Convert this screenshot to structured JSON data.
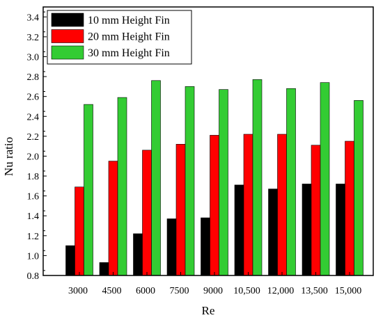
{
  "chart_data": {
    "type": "bar",
    "xlabel": "Re",
    "ylabel": "Nu ratio",
    "categories": [
      "3000",
      "4500",
      "6000",
      "7500",
      "9000",
      "10,500",
      "12,000",
      "13,500",
      "15,000"
    ],
    "ylim": [
      0.8,
      3.5
    ],
    "yticks": [
      "0.8",
      "1.0",
      "1.2",
      "1.4",
      "1.6",
      "1.8",
      "2.0",
      "2.2",
      "2.4",
      "2.6",
      "2.8",
      "3.0",
      "3.2",
      "3.4"
    ],
    "legend_position": "top-left",
    "grid": false,
    "series": [
      {
        "name": "10 mm Height Fin",
        "color": "#000000",
        "values": [
          1.1,
          0.93,
          1.22,
          1.37,
          1.38,
          1.71,
          1.67,
          1.72,
          1.72
        ]
      },
      {
        "name": "20 mm Height Fin",
        "color": "#ff0000",
        "values": [
          1.69,
          1.95,
          2.06,
          2.12,
          2.21,
          2.22,
          2.22,
          2.11,
          2.15
        ]
      },
      {
        "name": "30 mm Height Fin",
        "color": "#33cc33",
        "values": [
          2.52,
          2.59,
          2.76,
          2.7,
          2.67,
          2.77,
          2.68,
          2.74,
          2.56
        ]
      }
    ]
  }
}
